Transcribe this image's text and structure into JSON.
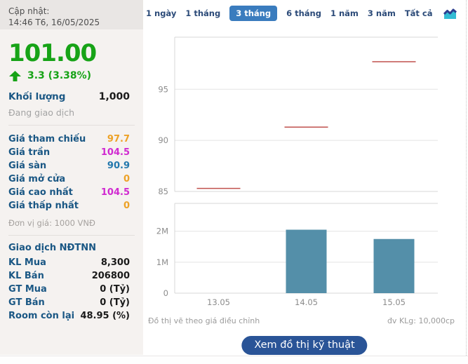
{
  "sidebar": {
    "updated_label": "Cập nhật:",
    "updated_time": "14:46 T6, 16/05/2025",
    "price": "101.00",
    "change": "3.3 (3.38%)",
    "price_color": "#17a317",
    "volume_label": "Khối lượng",
    "volume_value": "1,000",
    "status": "Đang giao dịch",
    "price_rows": [
      {
        "label": "Giá tham chiếu",
        "value": "97.7",
        "color": "#eda227"
      },
      {
        "label": "Giá trần",
        "value": "104.5",
        "color": "#d02ad0"
      },
      {
        "label": "Giá sàn",
        "value": "90.9",
        "color": "#2478ad"
      },
      {
        "label": "Giá mở cửa",
        "value": "0",
        "color": "#eda227"
      },
      {
        "label": "Giá cao nhất",
        "value": "104.5",
        "color": "#d02ad0"
      },
      {
        "label": "Giá thấp nhất",
        "value": "0",
        "color": "#eda227"
      }
    ],
    "unit_note": "Đơn vị giá: 1000 VNĐ",
    "foreign_header": "Giao dịch NĐTNN",
    "foreign_rows": [
      {
        "label": "KL Mua",
        "value": "8,300"
      },
      {
        "label": "KL Bán",
        "value": "206800"
      },
      {
        "label": "GT Mua",
        "value": "0 (Tỷ)"
      },
      {
        "label": "GT Bán",
        "value": "0 (Tỷ)"
      },
      {
        "label": "Room còn lại",
        "value": "48.95 (%)"
      }
    ]
  },
  "tabs": {
    "items": [
      "1 ngày",
      "1 tháng",
      "3 tháng",
      "6 tháng",
      "1 năm",
      "3 năm",
      "Tất cả"
    ],
    "selected": "3 tháng",
    "selected_bg": "#3a7cbe",
    "chart_icon": "area-chart-icon"
  },
  "chart_data": [
    {
      "type": "line",
      "title": "",
      "style": "flat-daily-segments",
      "x": [
        "13.05",
        "14.05",
        "15.05"
      ],
      "values": [
        85.3,
        91.3,
        97.7
      ],
      "ylim": [
        85,
        100.1
      ],
      "yticks": [
        {
          "value": 85,
          "label": "85"
        },
        {
          "value": 90,
          "label": "90"
        },
        {
          "value": 95,
          "label": "95"
        }
      ],
      "line_color": "#c0504d",
      "grid": true,
      "legend": "none"
    },
    {
      "type": "bar",
      "title": "",
      "categories": [
        "13.05",
        "14.05",
        "15.05"
      ],
      "values": [
        0,
        2050000,
        1750000
      ],
      "ylim": [
        0,
        2900000
      ],
      "yticks": [
        {
          "value": 0,
          "label": "0"
        },
        {
          "value": 1000000,
          "label": "1M"
        },
        {
          "value": 2000000,
          "label": "2M"
        }
      ],
      "bar_color": "#548fa9",
      "grid": true,
      "legend": "none"
    }
  ],
  "footer": {
    "note_left": "Đồ thị vẽ theo giá điều chỉnh",
    "note_right": "đv KLg: 10,000cp",
    "button_label": "Xem đồ thị kỹ thuật",
    "button_color": "#2a5497"
  }
}
